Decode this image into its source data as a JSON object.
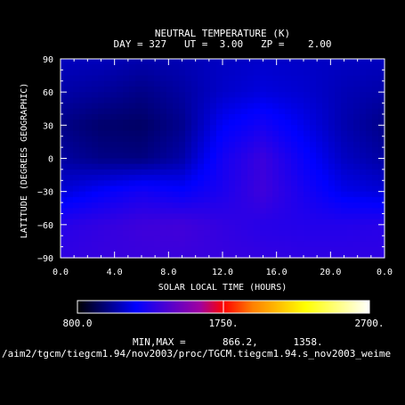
{
  "title": "NEUTRAL TEMPERATURE (K)",
  "subtitle": "DAY = 327   UT =  3.00   ZP =    2.00",
  "footer": {
    "minmax_label": "MIN,MAX =",
    "minmax_values": "866.2,      1358.",
    "file_path": "/aim2/tgcm/tiegcm1.94/nov2003/proc/TGCM.tiegcm1.94.s_nov2003_weime"
  },
  "colorbar": {
    "ticks": [
      "800.0",
      "1750.",
      "2700."
    ],
    "range": [
      800,
      2700
    ],
    "marker": 1750,
    "stops": [
      {
        "t": 0.0,
        "color": "#000000"
      },
      {
        "t": 0.2,
        "color": "#0000ff"
      },
      {
        "t": 0.42,
        "color": "#a000a0"
      },
      {
        "t": 0.5,
        "color": "#ff0000"
      },
      {
        "t": 0.6,
        "color": "#ff8000"
      },
      {
        "t": 0.78,
        "color": "#ffff00"
      },
      {
        "t": 1.0,
        "color": "#ffffff"
      }
    ]
  },
  "chart_data": {
    "type": "heatmap",
    "title": "NEUTRAL TEMPERATURE (K)",
    "xlabel": "SOLAR LOCAL TIME (HOURS)",
    "ylabel": "LATITUDE (DEGREES GEOGRAPHIC)",
    "x_ticks": [
      "0.0",
      "4.0",
      "8.0",
      "12.0",
      "16.0",
      "20.0",
      "0.0"
    ],
    "y_ticks": [
      "90",
      "60",
      "30",
      "0",
      "-30",
      "-60",
      "-90"
    ],
    "x_range": [
      0,
      24
    ],
    "ylim": [
      -90,
      90
    ],
    "x": [
      0,
      3,
      6,
      9,
      12,
      15,
      18,
      21,
      24
    ],
    "y": [
      90,
      60,
      30,
      0,
      -30,
      -60,
      -90
    ],
    "z": [
      [
        1085,
        1080,
        1060,
        1070,
        1090,
        1100,
        1095,
        1090,
        1085
      ],
      [
        1050,
        1030,
        1000,
        1040,
        1100,
        1130,
        1110,
        1070,
        1050
      ],
      [
        1000,
        960,
        950,
        1010,
        1170,
        1230,
        1150,
        1060,
        1000
      ],
      [
        1040,
        1000,
        990,
        1050,
        1230,
        1330,
        1200,
        1090,
        1040
      ],
      [
        1120,
        1180,
        1230,
        1190,
        1250,
        1340,
        1240,
        1150,
        1120
      ],
      [
        1280,
        1310,
        1340,
        1350,
        1310,
        1280,
        1270,
        1270,
        1280
      ],
      [
        1300,
        1320,
        1330,
        1330,
        1320,
        1310,
        1300,
        1300,
        1300
      ]
    ],
    "min": 866.2,
    "max": 1358
  }
}
